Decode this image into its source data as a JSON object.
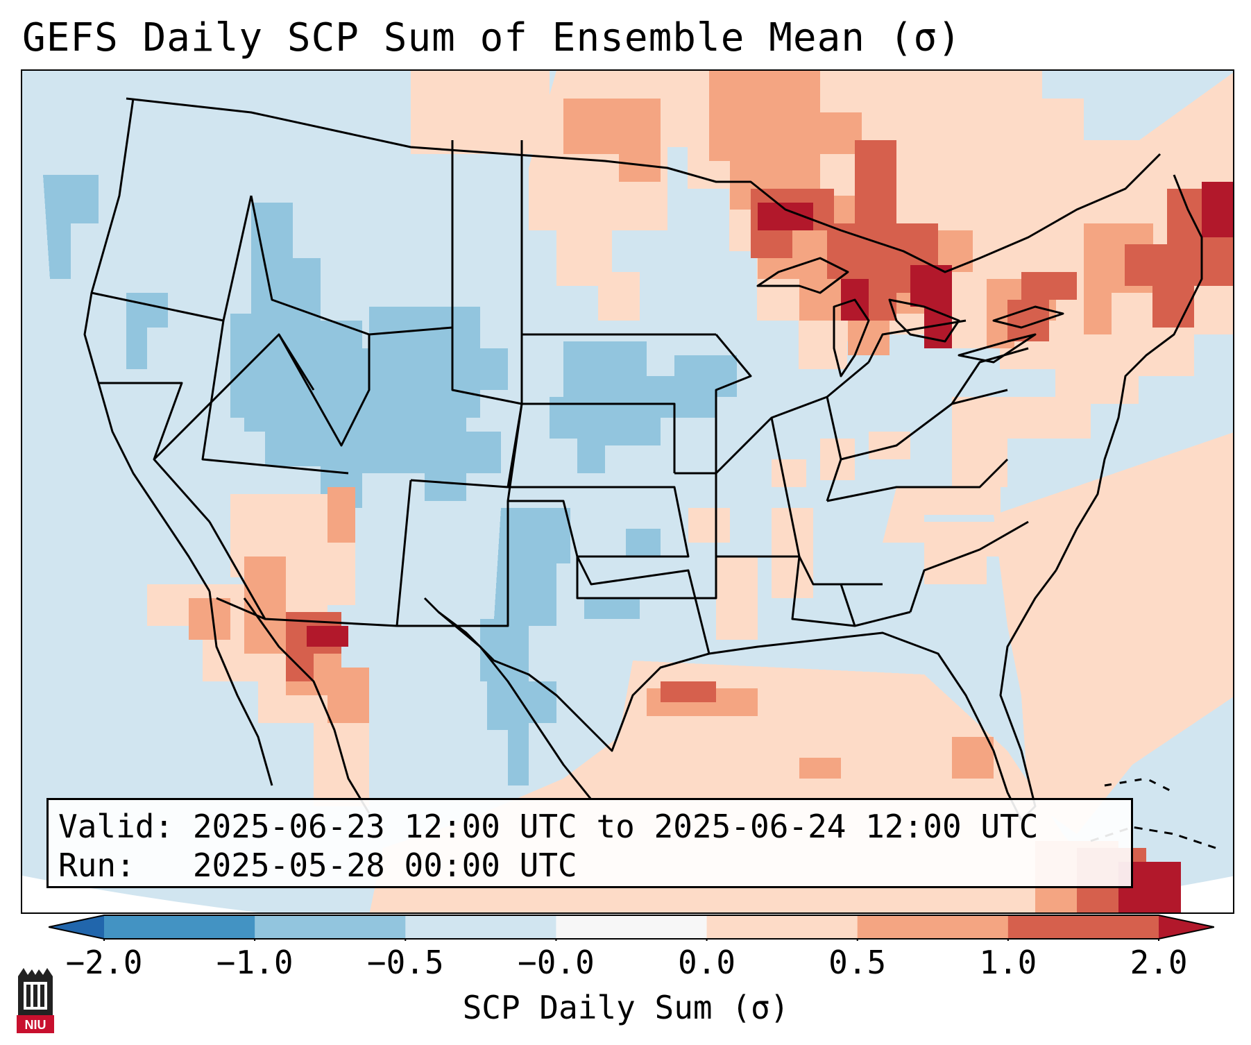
{
  "title": "GEFS Daily SCP Sum of Ensemble Mean (σ)",
  "info": {
    "valid_line": "Valid: 2025-06-23 12:00 UTC to 2025-06-24 12:00 UTC",
    "run_line": "Run:   2025-05-28 00:00 UTC"
  },
  "colorbar": {
    "label": "SCP Daily Sum (σ)",
    "ticks": [
      "−2.0",
      "−1.0",
      "−0.5",
      "−0.0",
      "0.0",
      "0.5",
      "1.0",
      "2.0"
    ],
    "colors": [
      "#4393c3",
      "#92c5de",
      "#d1e5f0",
      "#f7f7f7",
      "#fddbc7",
      "#f4a582",
      "#d6604d",
      "#b2182b"
    ],
    "under_color": "#2166ac",
    "over_color": "#b2182b"
  },
  "map": {
    "projection": "Lambert conformal, CONUS",
    "background_color": "#d1e5f0"
  },
  "logo": {
    "text": "NIU",
    "icon": "niu-castle-logo-icon"
  }
}
